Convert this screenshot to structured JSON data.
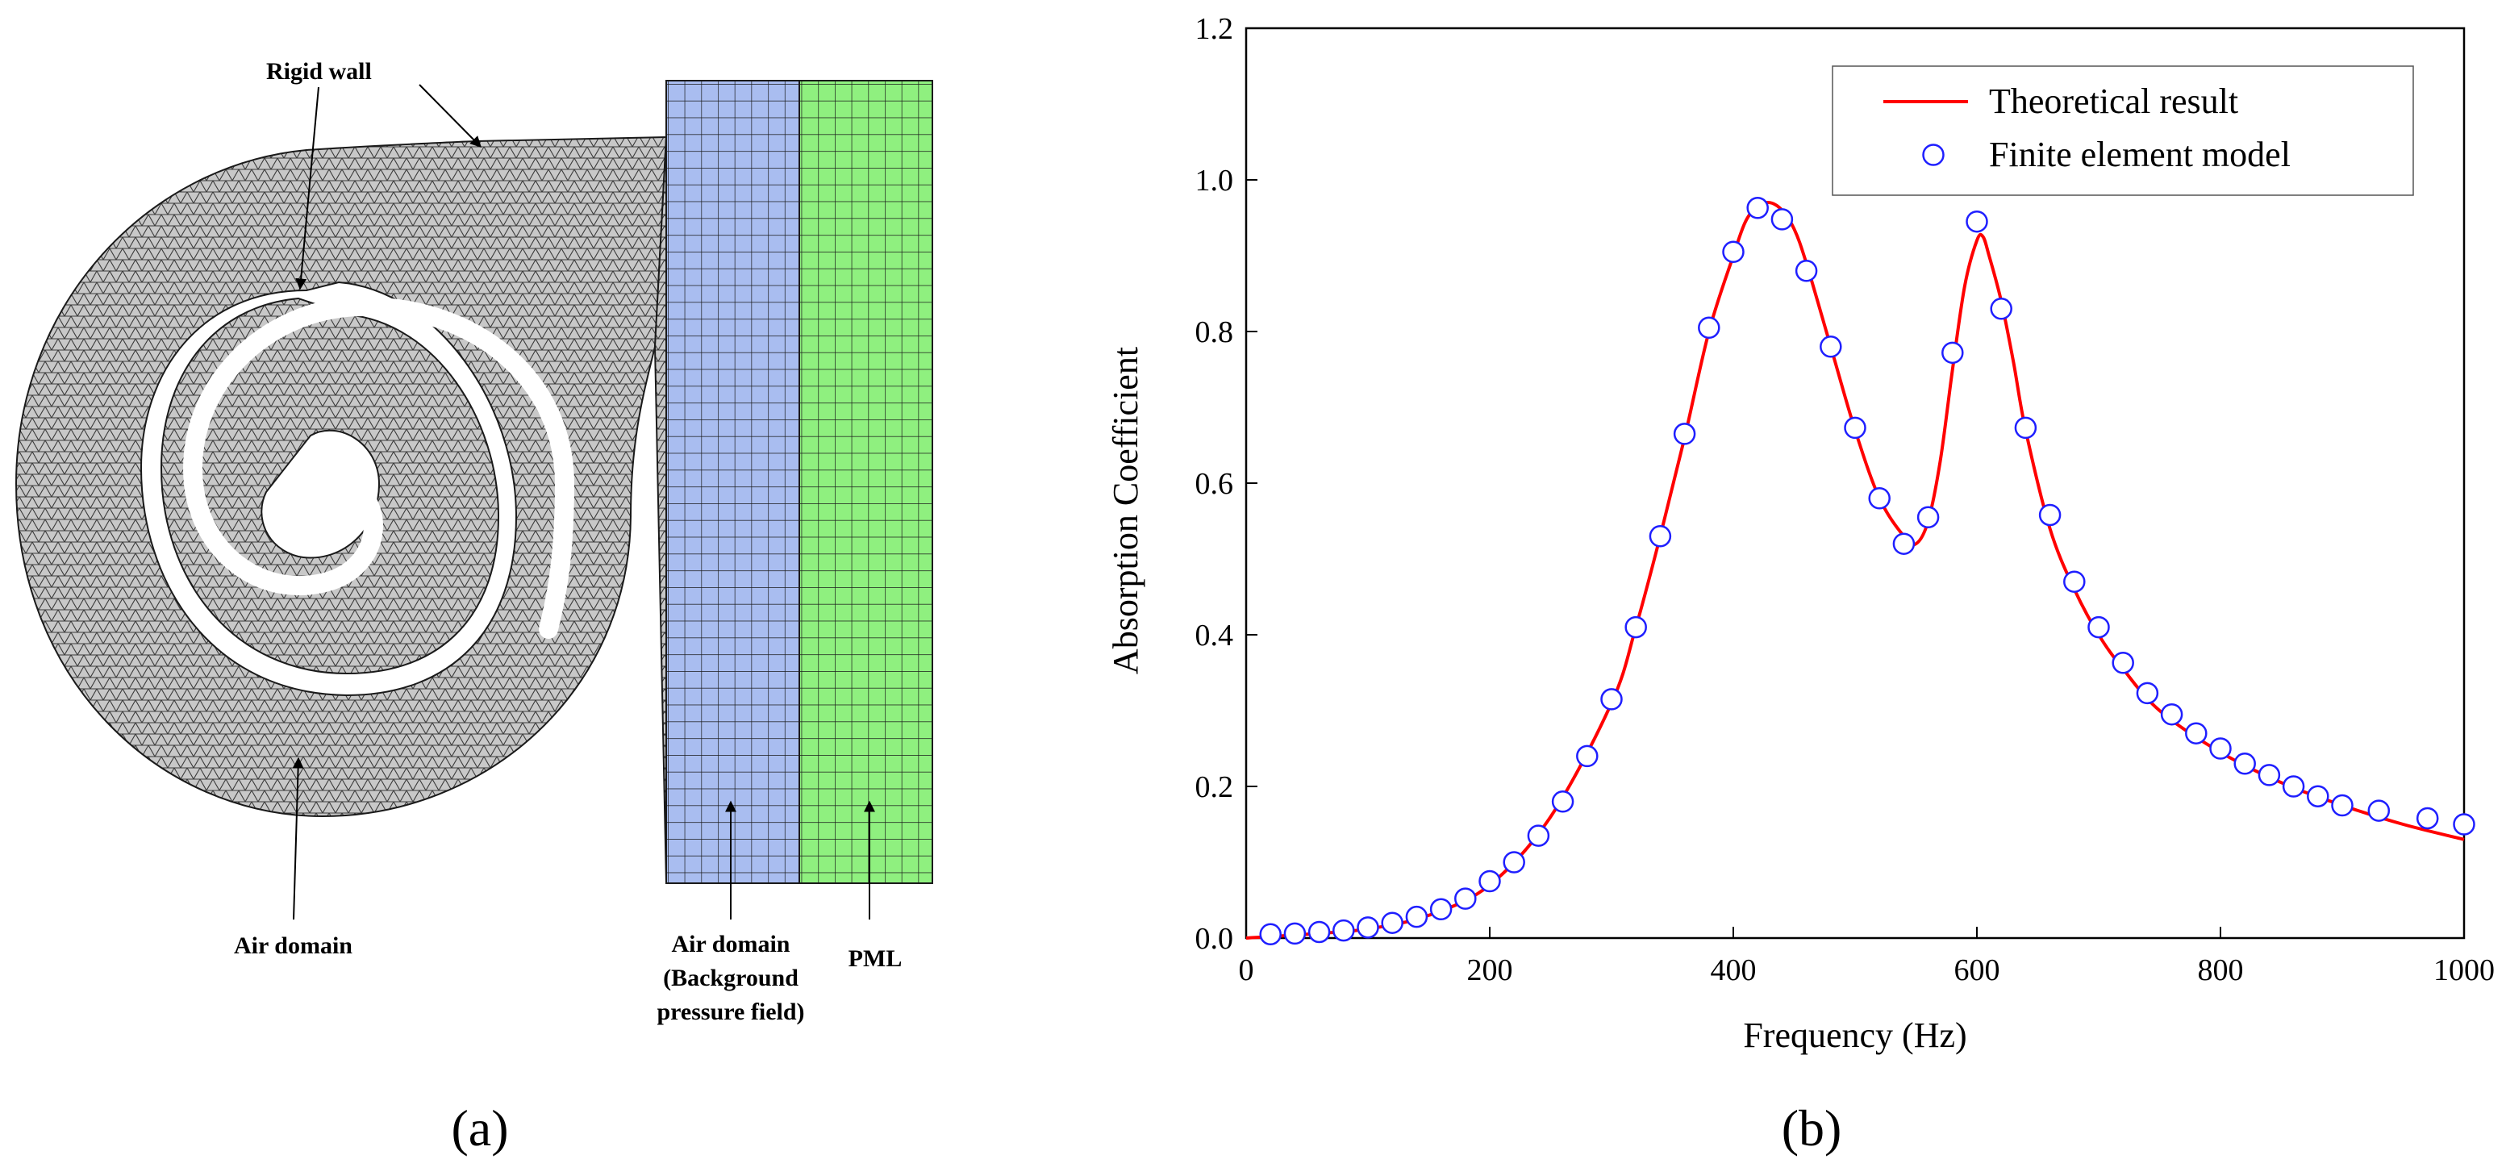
{
  "panel_a": {
    "label": "(a)",
    "annotations": {
      "rigid_wall": "Rigid wall",
      "air_domain": "Air domain",
      "air_domain_bg_line1": "Air domain",
      "air_domain_bg_line2": "(Background",
      "air_domain_bg_line3": "pressure field)",
      "pml": "PML"
    },
    "colors": {
      "mesh_fill": "#c8c8c8",
      "mesh_line": "#3a3a3a",
      "background_domain": "#a9bdf0",
      "pml_domain": "#8ff07f",
      "grid_line": "#1a1a1a"
    }
  },
  "panel_b": {
    "label": "(b)"
  },
  "chart_data": {
    "type": "line",
    "xlabel": "Frequency (Hz)",
    "ylabel": "Absorption Coefficient",
    "xlim": [
      0,
      1000
    ],
    "ylim": [
      0,
      1.2
    ],
    "xticks": [
      0,
      200,
      400,
      600,
      800,
      1000
    ],
    "yticks": [
      0.0,
      0.2,
      0.4,
      0.6,
      0.8,
      1.0,
      1.2
    ],
    "ytick_labels": [
      "0.0",
      "0.2",
      "0.4",
      "0.6",
      "0.8",
      "1.0",
      "1.2"
    ],
    "grid": false,
    "legend_position": "top-right",
    "series": [
      {
        "name": "Theoretical result",
        "style": "line",
        "color": "#ff0000",
        "x": [
          0,
          50,
          100,
          150,
          200,
          250,
          300,
          320,
          340,
          360,
          380,
          400,
          410,
          420,
          430,
          440,
          450,
          460,
          480,
          500,
          520,
          540,
          550,
          560,
          570,
          580,
          590,
          600,
          605,
          610,
          620,
          630,
          640,
          660,
          680,
          700,
          720,
          750,
          800,
          850,
          900,
          950,
          1000
        ],
        "y": [
          0.0,
          0.005,
          0.012,
          0.03,
          0.07,
          0.16,
          0.31,
          0.41,
          0.53,
          0.66,
          0.8,
          0.9,
          0.945,
          0.965,
          0.97,
          0.96,
          0.935,
          0.89,
          0.78,
          0.67,
          0.58,
          0.53,
          0.52,
          0.55,
          0.63,
          0.75,
          0.86,
          0.92,
          0.925,
          0.9,
          0.84,
          0.76,
          0.67,
          0.54,
          0.46,
          0.4,
          0.355,
          0.3,
          0.245,
          0.205,
          0.175,
          0.15,
          0.13
        ]
      },
      {
        "name": "Finite element model",
        "style": "marker",
        "color": "#1f1fff",
        "x": [
          20,
          40,
          60,
          80,
          100,
          120,
          140,
          160,
          180,
          200,
          220,
          240,
          260,
          280,
          300,
          320,
          340,
          360,
          380,
          400,
          420,
          440,
          460,
          480,
          500,
          520,
          540,
          560,
          580,
          600,
          620,
          640,
          660,
          680,
          700,
          720,
          740,
          760,
          780,
          800,
          820,
          840,
          860,
          880,
          900,
          930,
          970,
          1000
        ],
        "y": [
          0.005,
          0.006,
          0.008,
          0.01,
          0.014,
          0.02,
          0.028,
          0.038,
          0.052,
          0.075,
          0.1,
          0.135,
          0.18,
          0.24,
          0.315,
          0.41,
          0.53,
          0.665,
          0.805,
          0.905,
          0.963,
          0.948,
          0.88,
          0.78,
          0.673,
          0.58,
          0.52,
          0.555,
          0.772,
          0.945,
          0.83,
          0.673,
          0.558,
          0.47,
          0.41,
          0.363,
          0.323,
          0.295,
          0.27,
          0.25,
          0.23,
          0.215,
          0.2,
          0.187,
          0.175,
          0.168,
          0.158,
          0.15
        ]
      }
    ]
  }
}
